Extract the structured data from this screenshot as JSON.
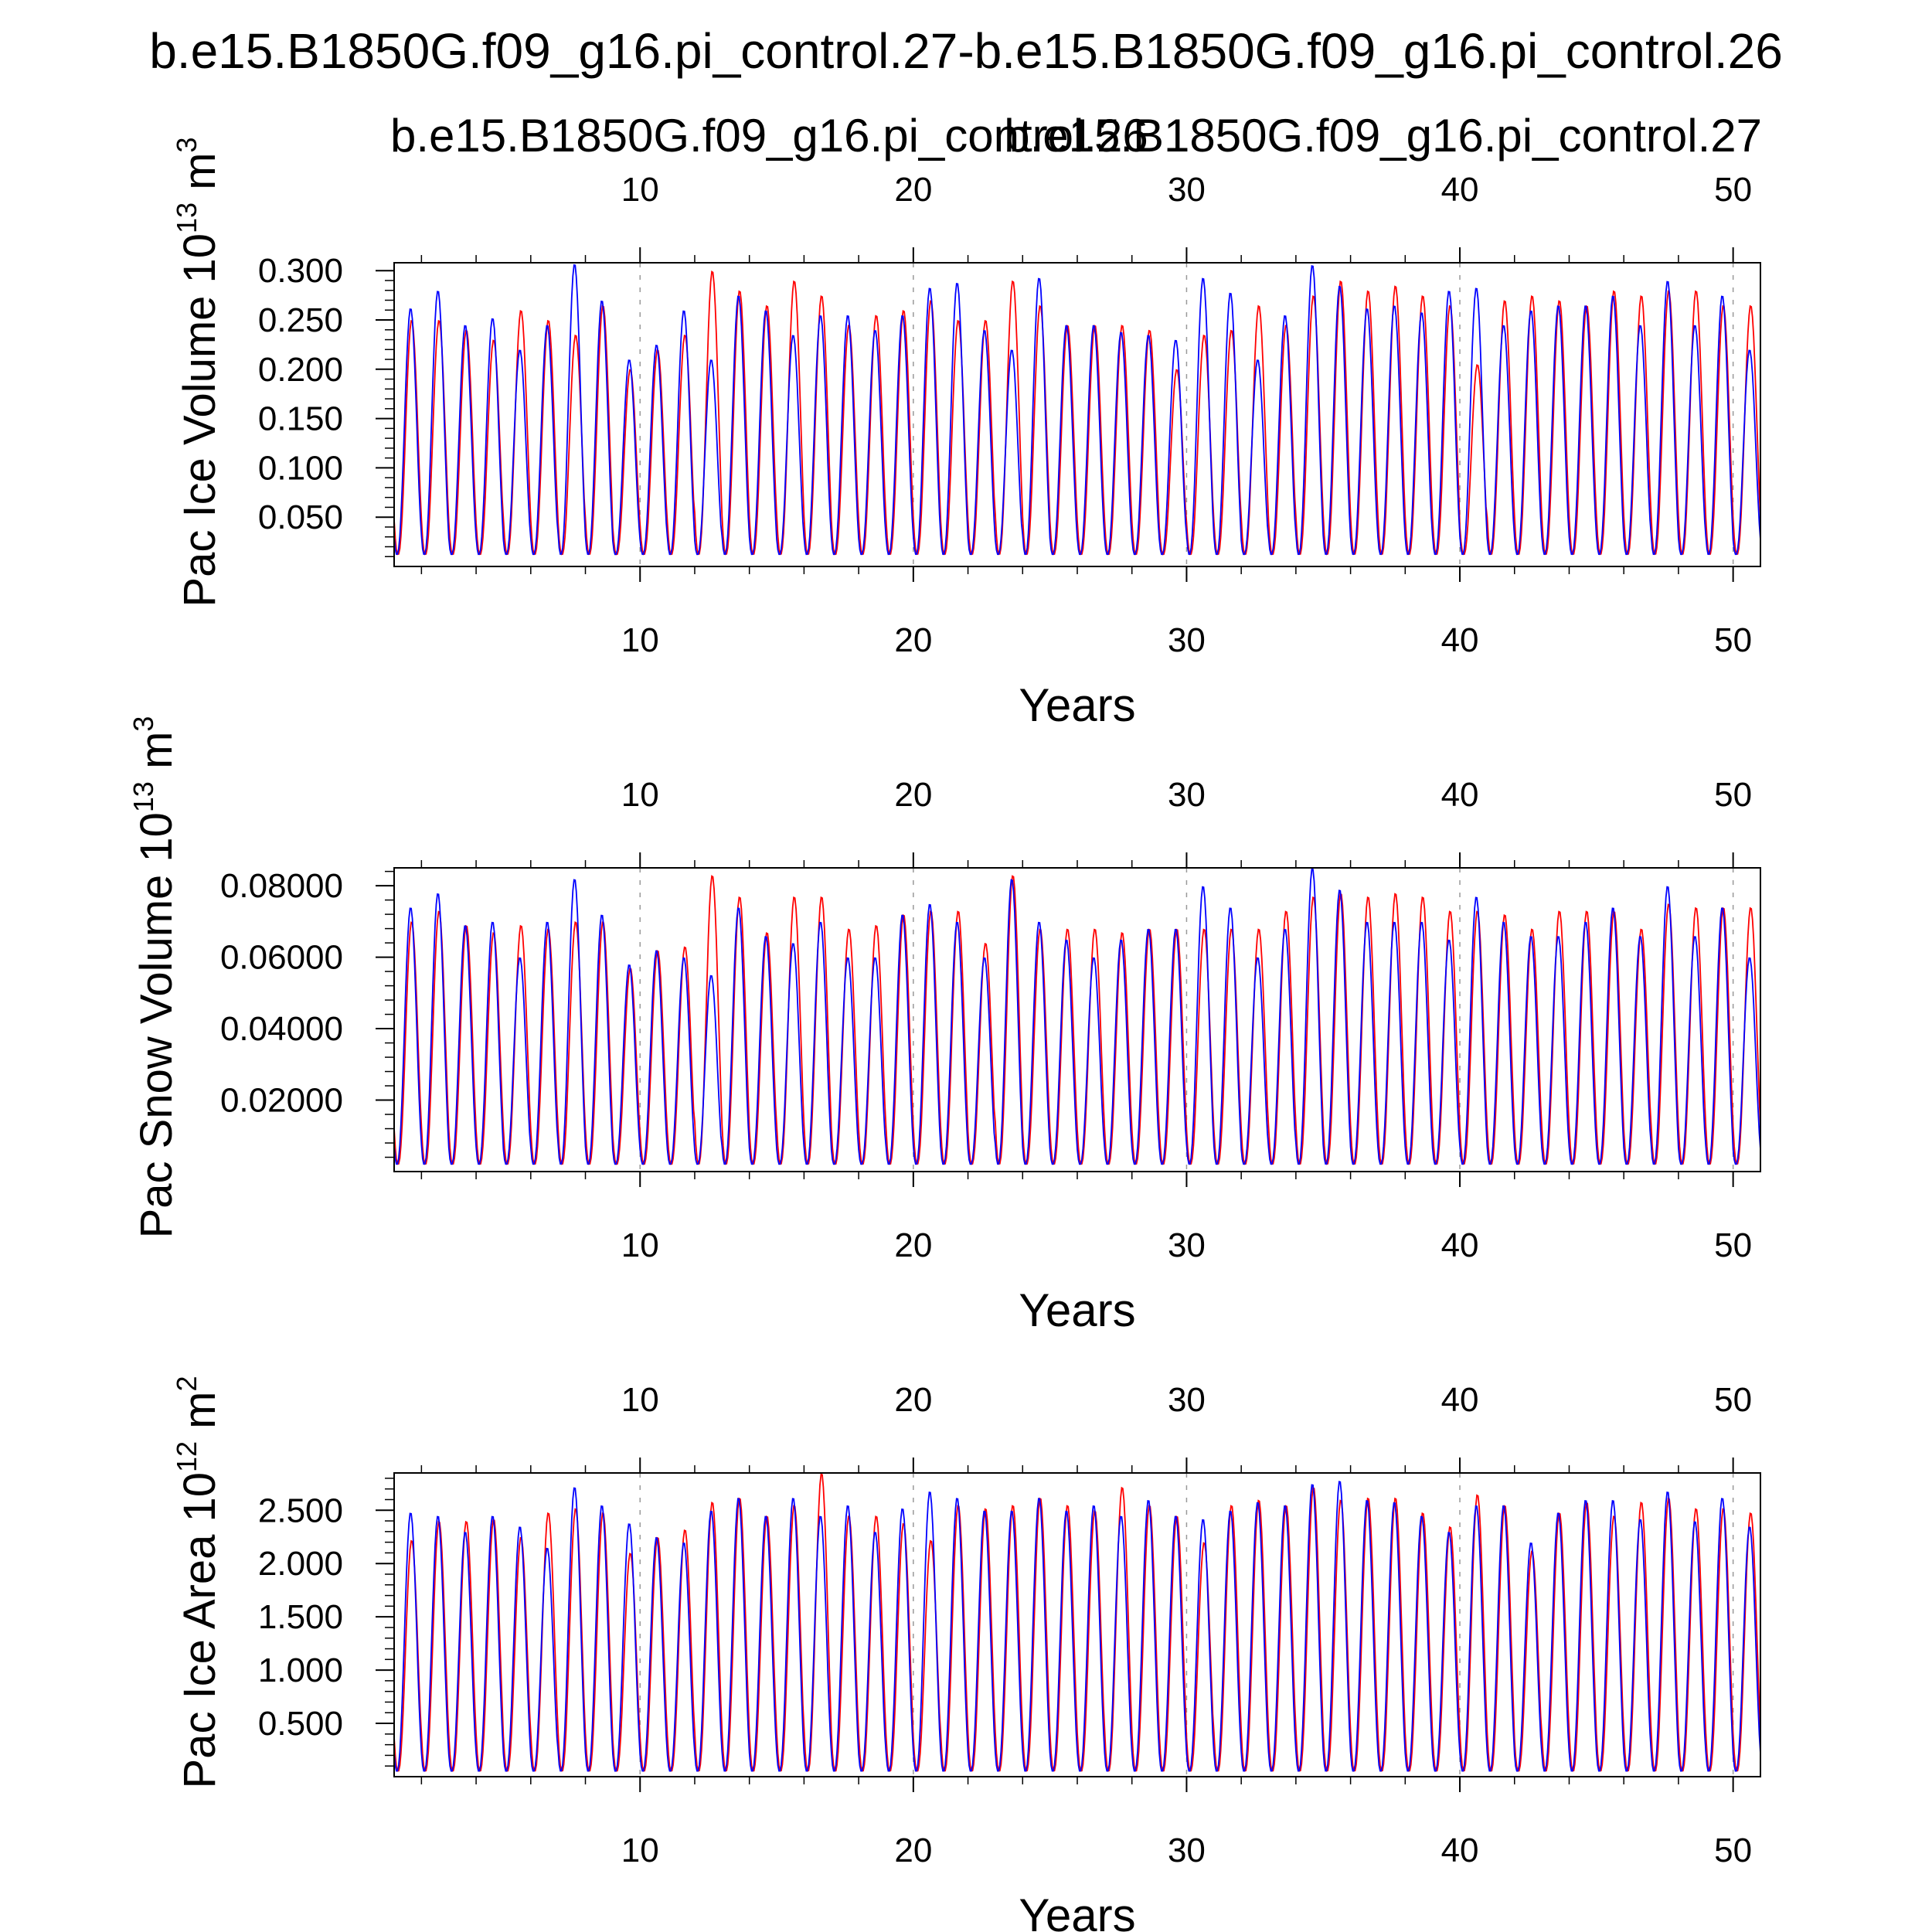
{
  "title": "b.e15.B1850G.f09_g16.pi_control.27-b.e15.B1850G.f09_g16.pi_control.26",
  "legend": {
    "red_label": "b.e15.B1850G.f09_g16.pi_control.26",
    "blue_label": "b.e15.B1850G.f09_g16.pi_control.27"
  },
  "colors": {
    "red": "#ff0000",
    "blue": "#0000ff",
    "axis": "#000000",
    "grid": "#999999"
  },
  "chart_data": [
    {
      "type": "line",
      "title": "",
      "ylabel_main": "Pac Ice Volume 10",
      "ylabel_exp": "13",
      "ylabel_unit": "m",
      "ylabel_unit_exp": "3",
      "xlabel": "Years",
      "xlim": [
        1,
        51
      ],
      "ylim": [
        0,
        0.308
      ],
      "y_major_ticks": [
        0.05,
        0.1,
        0.15,
        0.2,
        0.25,
        0.3
      ],
      "y_tick_labels": [
        "0.050",
        "0.100",
        "0.150",
        "0.200",
        "0.250",
        "0.300"
      ],
      "x_ticks": [
        10,
        20,
        30,
        40,
        50
      ],
      "x_tick_labels": [
        "10",
        "20",
        "30",
        "40",
        "50"
      ],
      "series": [
        {
          "name": "b.e15.B1850G.f09_g16.pi_control.26",
          "color": "red",
          "min": 0.012,
          "phase": 0.0,
          "peaks": [
            0.25,
            0.25,
            0.24,
            0.23,
            0.26,
            0.25,
            0.235,
            0.265,
            0.2,
            0.22,
            0.235,
            0.3,
            0.28,
            0.265,
            0.29,
            0.275,
            0.245,
            0.255,
            0.26,
            0.27,
            0.25,
            0.25,
            0.29,
            0.265,
            0.245,
            0.245,
            0.245,
            0.24,
            0.2,
            0.235,
            0.24,
            0.265,
            0.245,
            0.275,
            0.29,
            0.28,
            0.285,
            0.275,
            0.265,
            0.205,
            0.27,
            0.275,
            0.27,
            0.265,
            0.28,
            0.275,
            0.28,
            0.28,
            0.265,
            0.265
          ]
        },
        {
          "name": "b.e15.B1850G.f09_g16.pi_control.27",
          "color": "blue",
          "min": 0.012,
          "phase": 0.04,
          "peaks": [
            0.262,
            0.28,
            0.245,
            0.252,
            0.22,
            0.245,
            0.307,
            0.27,
            0.21,
            0.225,
            0.26,
            0.21,
            0.275,
            0.26,
            0.235,
            0.255,
            0.255,
            0.24,
            0.255,
            0.283,
            0.288,
            0.24,
            0.22,
            0.293,
            0.245,
            0.245,
            0.238,
            0.235,
            0.23,
            0.293,
            0.278,
            0.21,
            0.255,
            0.306,
            0.285,
            0.262,
            0.265,
            0.258,
            0.28,
            0.283,
            0.245,
            0.26,
            0.265,
            0.265,
            0.275,
            0.245,
            0.29,
            0.245,
            0.275,
            0.22
          ]
        }
      ]
    },
    {
      "type": "line",
      "title": "",
      "ylabel_main": "Pac Snow Volume 10",
      "ylabel_exp": "13",
      "ylabel_unit": "m",
      "ylabel_unit_exp": "3",
      "xlabel": "Years",
      "xlim": [
        1,
        51
      ],
      "ylim": [
        0,
        0.085
      ],
      "y_major_ticks": [
        0.02,
        0.04,
        0.06,
        0.08
      ],
      "y_tick_labels": [
        "0.02000",
        "0.04000",
        "0.06000",
        "0.08000"
      ],
      "x_ticks": [
        10,
        20,
        30,
        40,
        50
      ],
      "x_tick_labels": [
        "10",
        "20",
        "30",
        "40",
        "50"
      ],
      "series": [
        {
          "name": "b.e15.B1850G.f09_g16.pi_control.26",
          "color": "red",
          "min": 0.002,
          "phase": 0.0,
          "peaks": [
            0.07,
            0.073,
            0.069,
            0.067,
            0.069,
            0.068,
            0.07,
            0.07,
            0.057,
            0.062,
            0.063,
            0.083,
            0.077,
            0.067,
            0.077,
            0.077,
            0.068,
            0.069,
            0.072,
            0.073,
            0.073,
            0.064,
            0.083,
            0.068,
            0.068,
            0.068,
            0.067,
            0.068,
            0.068,
            0.068,
            0.068,
            0.068,
            0.073,
            0.077,
            0.078,
            0.077,
            0.078,
            0.077,
            0.073,
            0.073,
            0.072,
            0.068,
            0.073,
            0.073,
            0.073,
            0.068,
            0.075,
            0.074,
            0.074,
            0.074
          ]
        },
        {
          "name": "b.e15.B1850G.f09_g16.pi_control.27",
          "color": "blue",
          "min": 0.002,
          "phase": 0.04,
          "peaks": [
            0.074,
            0.078,
            0.069,
            0.07,
            0.06,
            0.07,
            0.082,
            0.072,
            0.058,
            0.062,
            0.06,
            0.055,
            0.074,
            0.066,
            0.064,
            0.07,
            0.06,
            0.06,
            0.072,
            0.075,
            0.07,
            0.06,
            0.082,
            0.07,
            0.065,
            0.06,
            0.065,
            0.068,
            0.068,
            0.08,
            0.074,
            0.06,
            0.068,
            0.085,
            0.079,
            0.07,
            0.07,
            0.07,
            0.065,
            0.077,
            0.07,
            0.066,
            0.066,
            0.07,
            0.074,
            0.066,
            0.08,
            0.066,
            0.074,
            0.06
          ]
        }
      ]
    },
    {
      "type": "line",
      "title": "",
      "ylabel_main": "Pac Ice Area 10",
      "ylabel_exp": "12",
      "ylabel_unit": "m",
      "ylabel_unit_exp": "2",
      "xlabel": "Years",
      "xlim": [
        1,
        51
      ],
      "ylim": [
        0,
        2.85
      ],
      "y_major_ticks": [
        0.5,
        1.0,
        1.5,
        2.0,
        2.5
      ],
      "y_tick_labels": [
        "0.500",
        "1.000",
        "1.500",
        "2.000",
        "2.500"
      ],
      "x_ticks": [
        10,
        20,
        30,
        40,
        50
      ],
      "x_tick_labels": [
        "10",
        "20",
        "30",
        "40",
        "50"
      ],
      "series": [
        {
          "name": "b.e15.B1850G.f09_g16.pi_control.26",
          "color": "red",
          "min": 0.05,
          "phase": 0.0,
          "peaks": [
            2.22,
            2.4,
            2.4,
            2.42,
            2.25,
            2.48,
            2.52,
            2.48,
            2.1,
            2.25,
            2.32,
            2.58,
            2.62,
            2.45,
            2.55,
            2.85,
            2.45,
            2.45,
            2.38,
            2.22,
            2.55,
            2.52,
            2.55,
            2.62,
            2.55,
            2.5,
            2.72,
            2.55,
            2.45,
            2.2,
            2.55,
            2.6,
            2.55,
            2.72,
            2.6,
            2.62,
            2.62,
            2.48,
            2.35,
            2.65,
            2.55,
            2.12,
            2.48,
            2.58,
            2.45,
            2.58,
            2.62,
            2.52,
            2.52,
            2.48
          ]
        },
        {
          "name": "b.e15.B1850G.f09_g16.pi_control.27",
          "color": "blue",
          "min": 0.05,
          "phase": 0.04,
          "peaks": [
            2.48,
            2.45,
            2.3,
            2.45,
            2.35,
            2.15,
            2.72,
            2.55,
            2.38,
            2.25,
            2.2,
            2.5,
            2.62,
            2.45,
            2.62,
            2.45,
            2.55,
            2.3,
            2.52,
            2.68,
            2.62,
            2.5,
            2.5,
            2.62,
            2.5,
            2.55,
            2.45,
            2.6,
            2.45,
            2.42,
            2.5,
            2.58,
            2.55,
            2.75,
            2.78,
            2.6,
            2.58,
            2.45,
            2.3,
            2.55,
            2.55,
            2.2,
            2.48,
            2.6,
            2.6,
            2.42,
            2.68,
            2.4,
            2.62,
            2.35
          ]
        }
      ]
    }
  ]
}
